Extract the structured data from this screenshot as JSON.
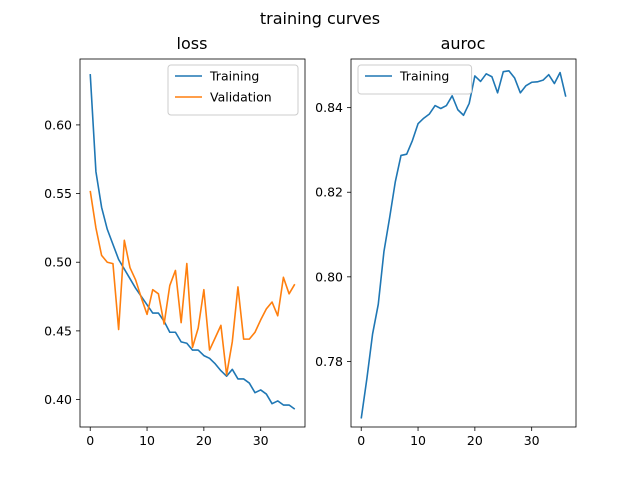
{
  "figure": {
    "suptitle": "training curves"
  },
  "chart_data": [
    {
      "type": "line",
      "title": "loss",
      "xlabel": "",
      "ylabel": "",
      "xlim": [
        -1.8,
        37.8
      ],
      "ylim": [
        0.38,
        0.648
      ],
      "xticks": [
        0,
        10,
        20,
        30
      ],
      "yticks": [
        0.4,
        0.45,
        0.5,
        0.55,
        0.6
      ],
      "ytick_labels": [
        "0.40",
        "0.45",
        "0.50",
        "0.55",
        "0.60"
      ],
      "grid": false,
      "legend": "top-right",
      "x": [
        0,
        1,
        2,
        3,
        4,
        5,
        6,
        7,
        8,
        9,
        10,
        11,
        12,
        13,
        14,
        15,
        16,
        17,
        18,
        19,
        20,
        21,
        22,
        23,
        24,
        25,
        26,
        27,
        28,
        29,
        30,
        31,
        32,
        33,
        34,
        35,
        36
      ],
      "series": [
        {
          "name": "Training",
          "color": "#1f77b4",
          "values": [
            0.637,
            0.566,
            0.54,
            0.524,
            0.513,
            0.502,
            0.495,
            0.488,
            0.481,
            0.475,
            0.469,
            0.463,
            0.463,
            0.457,
            0.449,
            0.449,
            0.442,
            0.441,
            0.436,
            0.436,
            0.432,
            0.43,
            0.426,
            0.421,
            0.417,
            0.422,
            0.415,
            0.415,
            0.412,
            0.405,
            0.407,
            0.404,
            0.397,
            0.399,
            0.396,
            0.396,
            0.393
          ]
        },
        {
          "name": "Validation",
          "color": "#ff7f0e",
          "values": [
            0.552,
            0.525,
            0.505,
            0.5,
            0.499,
            0.451,
            0.516,
            0.496,
            0.487,
            0.474,
            0.462,
            0.48,
            0.477,
            0.455,
            0.483,
            0.494,
            0.456,
            0.499,
            0.438,
            0.452,
            0.48,
            0.436,
            0.445,
            0.454,
            0.418,
            0.442,
            0.482,
            0.444,
            0.444,
            0.449,
            0.458,
            0.466,
            0.471,
            0.461,
            0.489,
            0.477,
            0.484
          ]
        }
      ]
    },
    {
      "type": "line",
      "title": "auroc",
      "xlabel": "",
      "ylabel": "",
      "xlim": [
        -1.8,
        37.8
      ],
      "ylim": [
        0.7645,
        0.8515
      ],
      "xticks": [
        0,
        10,
        20,
        30
      ],
      "yticks": [
        0.78,
        0.8,
        0.82,
        0.84
      ],
      "ytick_labels": [
        "0.78",
        "0.80",
        "0.82",
        "0.84"
      ],
      "grid": false,
      "legend": "top-left",
      "x": [
        0,
        1,
        2,
        3,
        4,
        5,
        6,
        7,
        8,
        9,
        10,
        11,
        12,
        13,
        14,
        15,
        16,
        17,
        18,
        19,
        20,
        21,
        22,
        23,
        24,
        25,
        26,
        27,
        28,
        29,
        30,
        31,
        32,
        33,
        34,
        35,
        36
      ],
      "series": [
        {
          "name": "Training",
          "color": "#1f77b4",
          "values": [
            0.7665,
            0.776,
            0.7865,
            0.7935,
            0.806,
            0.814,
            0.8225,
            0.8287,
            0.829,
            0.8322,
            0.8362,
            0.8375,
            0.8385,
            0.8405,
            0.8398,
            0.8405,
            0.8428,
            0.8395,
            0.8382,
            0.841,
            0.8475,
            0.8462,
            0.848,
            0.8473,
            0.8435,
            0.8485,
            0.8487,
            0.847,
            0.8435,
            0.8452,
            0.846,
            0.8461,
            0.8465,
            0.8478,
            0.8457,
            0.8483,
            0.8426
          ]
        }
      ]
    }
  ]
}
